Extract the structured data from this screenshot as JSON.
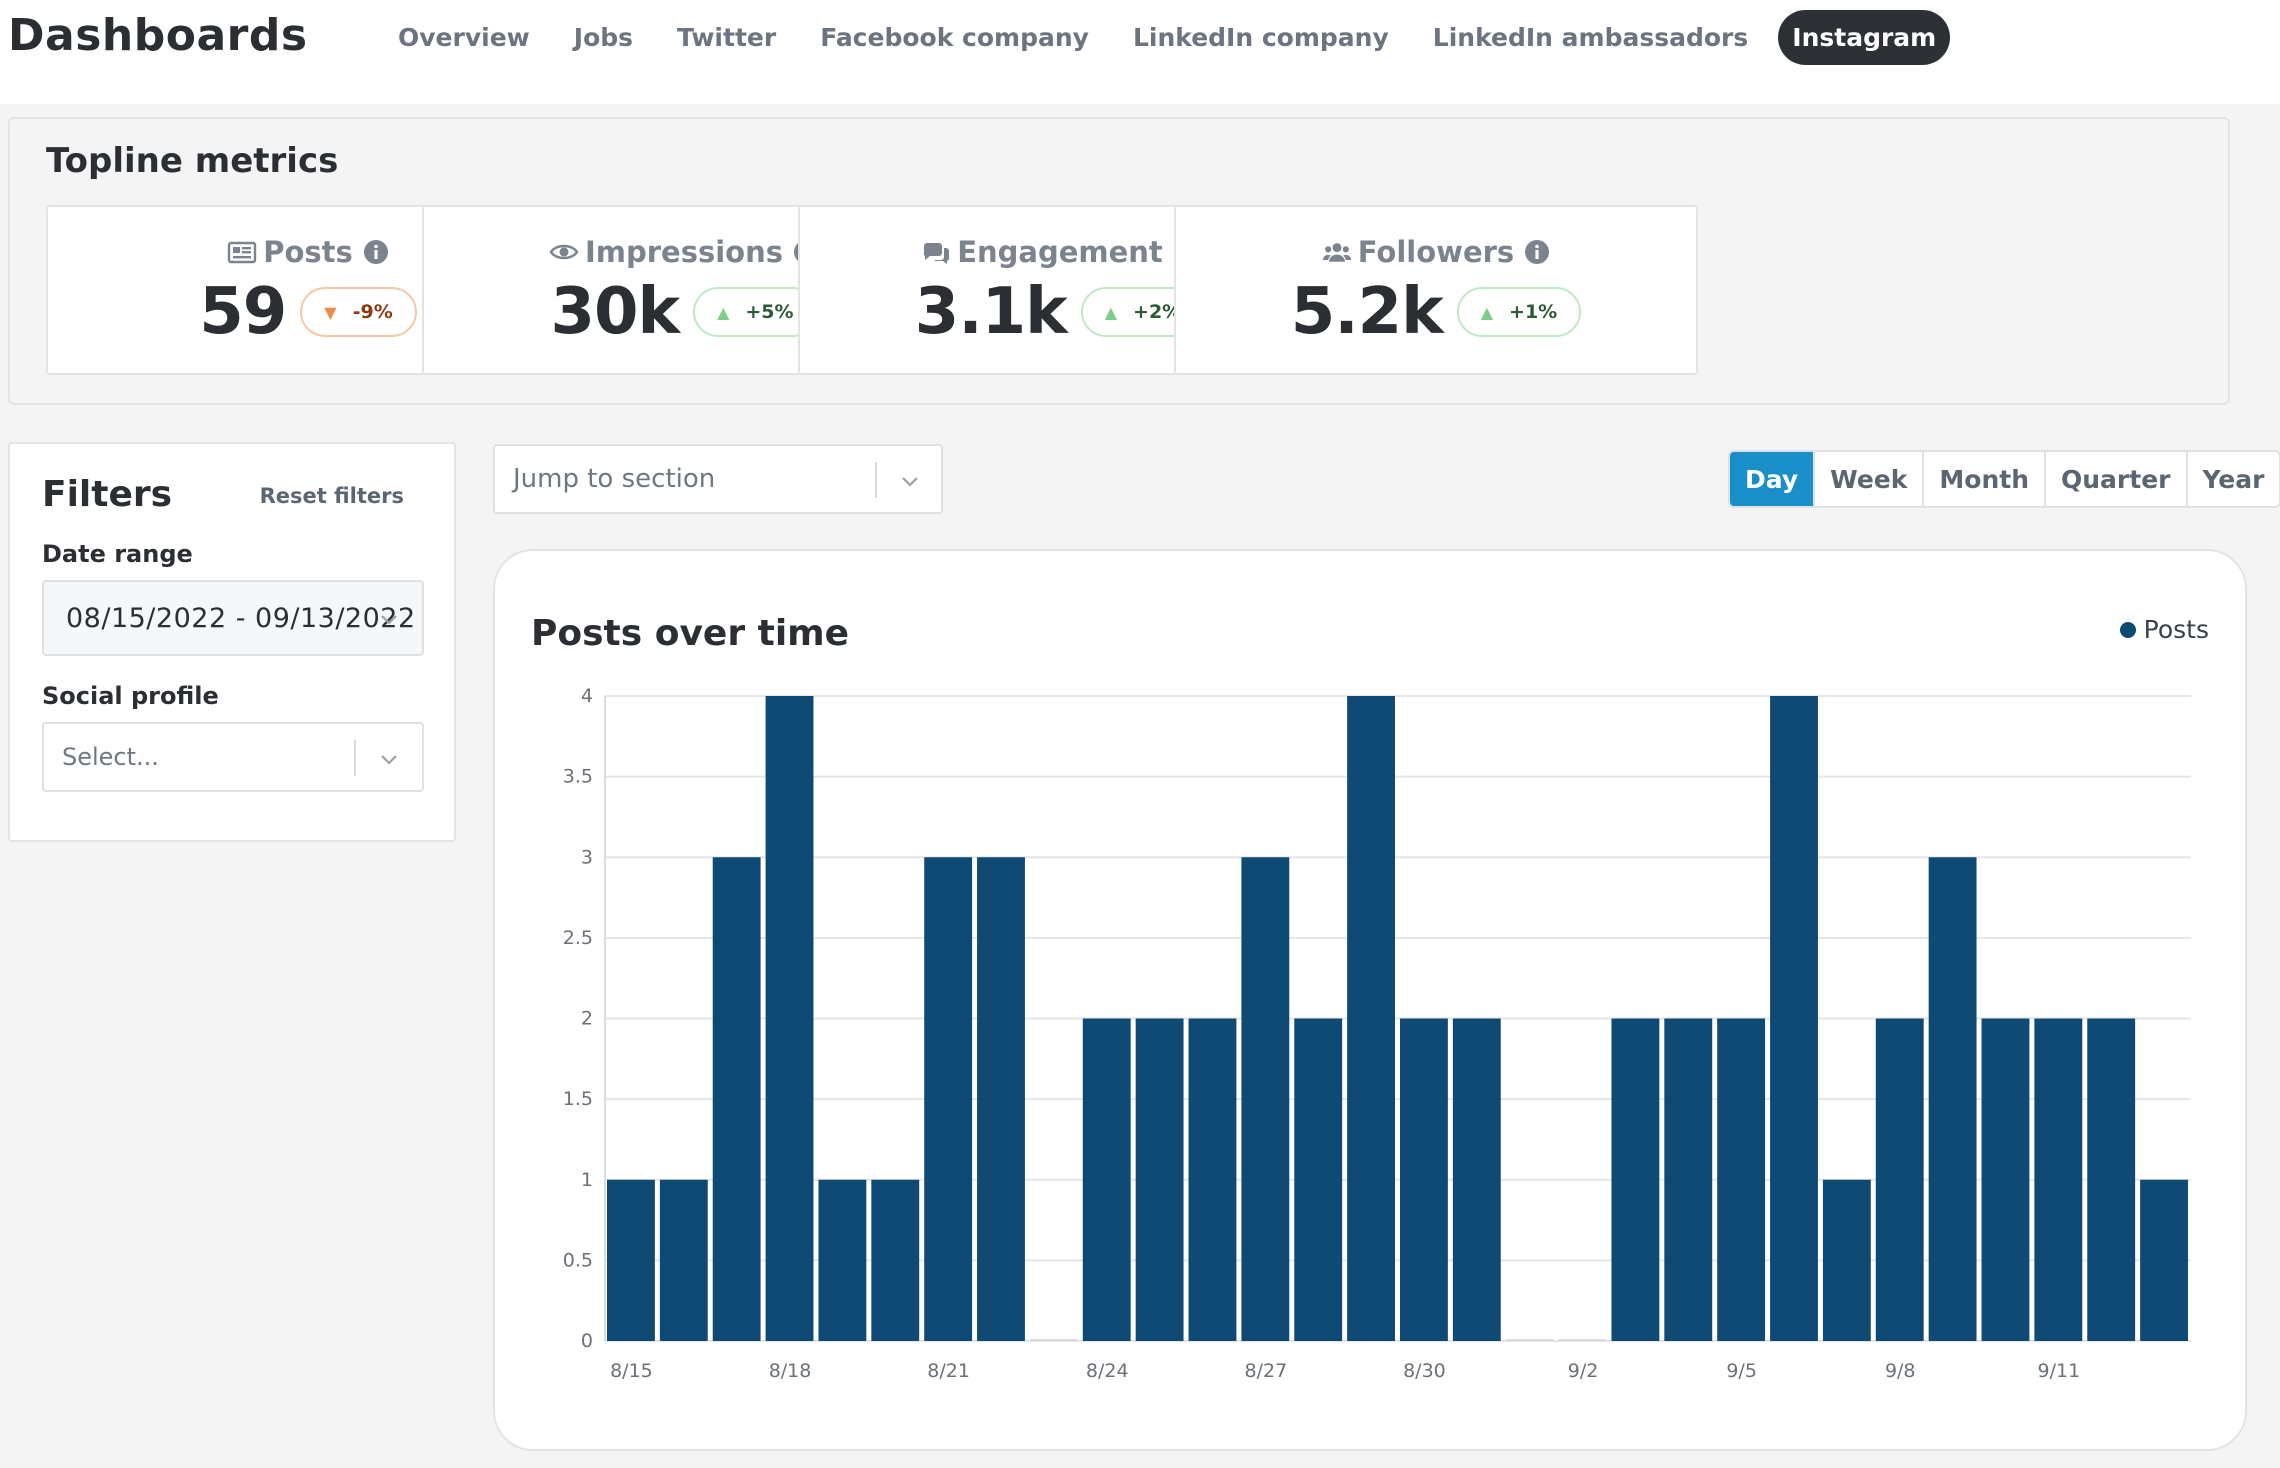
{
  "app": {
    "title": "Dashboards"
  },
  "nav": {
    "items": [
      {
        "label": "Overview",
        "active": false
      },
      {
        "label": "Jobs",
        "active": false
      },
      {
        "label": "Twitter",
        "active": false
      },
      {
        "label": "Facebook company",
        "active": false
      },
      {
        "label": "LinkedIn company",
        "active": false
      },
      {
        "label": "LinkedIn ambassadors",
        "active": false
      },
      {
        "label": "Instagram",
        "active": true
      }
    ]
  },
  "topline": {
    "title": "Topline metrics",
    "metrics": [
      {
        "label": "Posts",
        "icon": "newspaper-icon",
        "value": "59",
        "delta": "-9%",
        "direction": "down"
      },
      {
        "label": "Impressions",
        "icon": "eye-icon",
        "value": "30k",
        "delta": "+5%",
        "direction": "up"
      },
      {
        "label": "Engagement",
        "icon": "comments-icon",
        "value": "3.1k",
        "delta": "+2%",
        "direction": "up"
      },
      {
        "label": "Followers",
        "icon": "users-icon",
        "value": "5.2k",
        "delta": "+1%",
        "direction": "up"
      }
    ]
  },
  "filters": {
    "title": "Filters",
    "reset_label": "Reset filters",
    "date_range_label": "Date range",
    "date_range_value": "08/15/2022 - 09/13/2022",
    "social_profile_label": "Social profile",
    "social_profile_placeholder": "Select..."
  },
  "toolbar": {
    "jump_placeholder": "Jump to section",
    "periods": [
      {
        "label": "Day",
        "active": true
      },
      {
        "label": "Week",
        "active": false
      },
      {
        "label": "Month",
        "active": false
      },
      {
        "label": "Quarter",
        "active": false
      },
      {
        "label": "Year",
        "active": false
      }
    ]
  },
  "colors": {
    "accent": "#1a8ec9",
    "bar": "#0e4a74",
    "nav_active": "#2d3136",
    "delta_up": "#7bcf89",
    "delta_down": "#f08a44"
  },
  "chart_data": {
    "type": "bar",
    "title": "Posts over time",
    "legend": "Posts",
    "legend_position": "top-right",
    "ylim": [
      0,
      4
    ],
    "yticks": [
      "0",
      "0.5",
      "1",
      "1.5",
      "2",
      "2.5",
      "3",
      "3.5",
      "4"
    ],
    "grid": true,
    "categories": [
      "8/15",
      "8/16",
      "8/17",
      "8/18",
      "8/19",
      "8/20",
      "8/21",
      "8/22",
      "8/23",
      "8/24",
      "8/25",
      "8/26",
      "8/27",
      "8/28",
      "8/29",
      "8/30",
      "8/31",
      "9/1",
      "9/2",
      "9/3",
      "9/4",
      "9/5",
      "9/6",
      "9/7",
      "9/8",
      "9/9",
      "9/10",
      "9/11",
      "9/12",
      "9/13"
    ],
    "xticks": [
      "8/15",
      "8/18",
      "8/21",
      "8/24",
      "8/27",
      "8/30",
      "9/2",
      "9/5",
      "9/8",
      "9/11"
    ],
    "series": [
      {
        "name": "Posts",
        "values": [
          1,
          1,
          3,
          4,
          1,
          1,
          3,
          3,
          0,
          2,
          2,
          2,
          3,
          2,
          4,
          2,
          2,
          0,
          0,
          2,
          2,
          2,
          4,
          1,
          2,
          3,
          2,
          2,
          2,
          1
        ]
      }
    ]
  }
}
